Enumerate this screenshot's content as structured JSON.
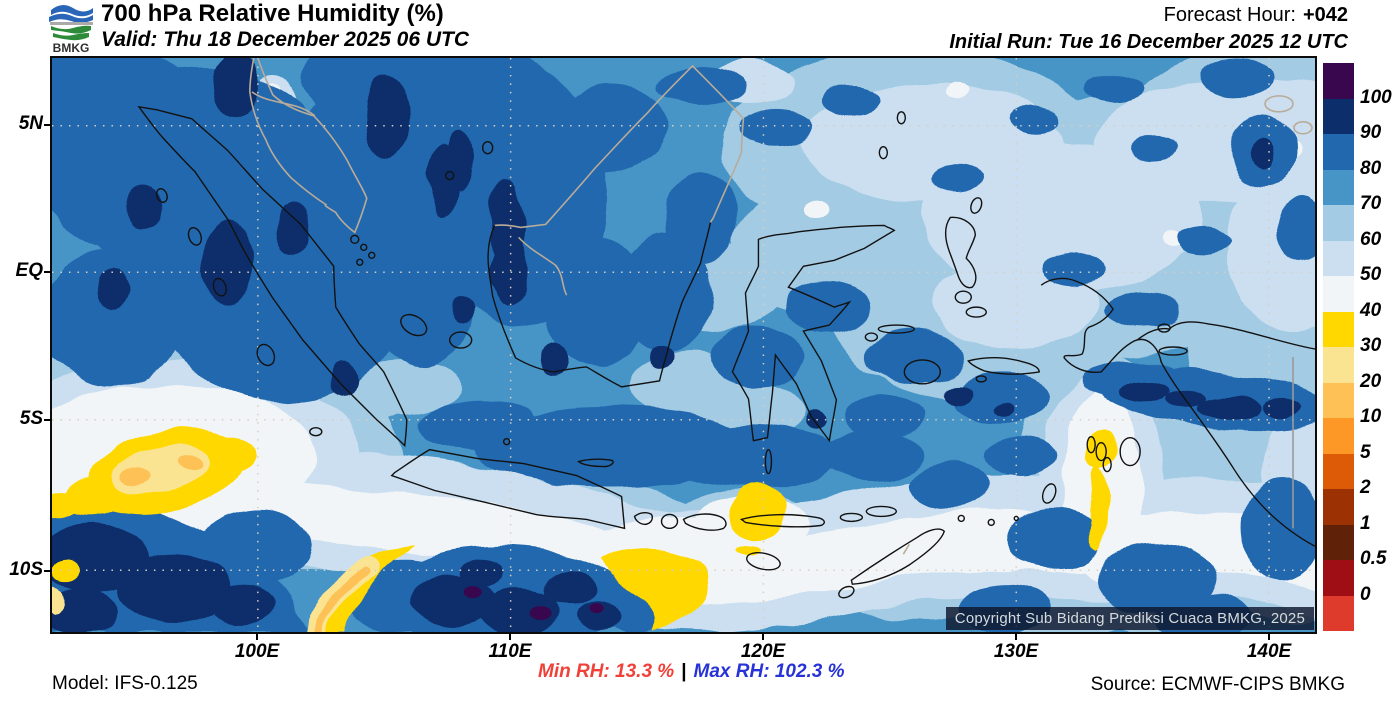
{
  "header": {
    "logo_text": "BMKG",
    "title": "700 hPa Relative Humidity (%)",
    "valid": "Valid: Thu 18 December 2025 06 UTC",
    "forecast_hour_label": "Forecast Hour:",
    "forecast_hour_value": "+042",
    "initial_run": "Initial Run: Tue 16 December 2025 12 UTC"
  },
  "map": {
    "lat_ticks": [
      "5N",
      "EQ",
      "5S",
      "10S"
    ],
    "lon_ticks": [
      "100E",
      "110E",
      "120E",
      "130E",
      "140E"
    ],
    "copyright": "Copyright Sub Bidang Prediksi Cuaca BMKG, 2025"
  },
  "legend": {
    "labels": [
      "100",
      "90",
      "80",
      "70",
      "60",
      "50",
      "40",
      "30",
      "20",
      "10",
      "5",
      "2",
      "1",
      "0.5",
      "0"
    ],
    "colors": [
      "#38074e",
      "#0c2f6b",
      "#2268ae",
      "#4695c6",
      "#a3cbe3",
      "#cbdff0",
      "#f2f5f8",
      "#ffd800",
      "#fbe491",
      "#fdc155",
      "#fd9827",
      "#dd5a07",
      "#9c3103",
      "#5f2108",
      "#9e0e14",
      "#de3b2c"
    ]
  },
  "footer": {
    "model": "Model: IFS-0.125",
    "min_rh": "Min RH:  13.3 %",
    "separator": "|",
    "max_rh": "Max RH: 102.3 %",
    "source": "Source: ECMWF-CIPS BMKG",
    "min_rh_color": "#f04138",
    "max_rh_color": "#2733d6"
  }
}
